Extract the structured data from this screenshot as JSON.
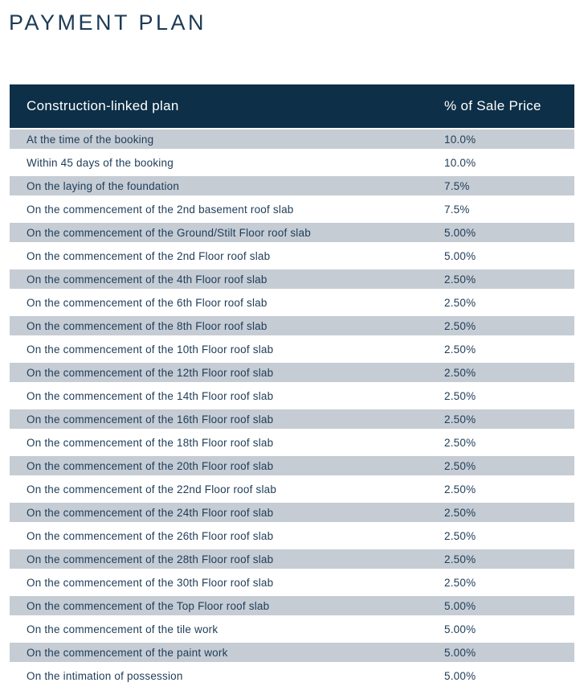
{
  "page": {
    "title": "PAYMENT PLAN"
  },
  "colors": {
    "title_text": "#1c3a55",
    "header_bg": "#0d2f48",
    "header_text": "#ffffff",
    "stripe_bg": "#c5ccd4",
    "row_text": "#1e3c58",
    "page_bg": "#ffffff"
  },
  "table": {
    "header": {
      "plan": "Construction-linked plan",
      "percent": "% of Sale Price"
    },
    "rows": [
      {
        "milestone": "At the time of the booking",
        "percent": "10.0%"
      },
      {
        "milestone": "Within 45 days of the booking",
        "percent": "10.0%"
      },
      {
        "milestone": "On the laying of the foundation",
        "percent": "7.5%"
      },
      {
        "milestone": "On the commencement of the 2nd basement roof slab",
        "percent": "7.5%"
      },
      {
        "milestone": "On the commencement of the Ground/Stilt Floor roof slab",
        "percent": "5.00%"
      },
      {
        "milestone": "On the commencement of the 2nd Floor roof slab",
        "percent": "5.00%"
      },
      {
        "milestone": "On the commencement of the 4th Floor roof slab",
        "percent": "2.50%"
      },
      {
        "milestone": "On the commencement of the 6th Floor roof slab",
        "percent": "2.50%"
      },
      {
        "milestone": "On the commencement of the 8th Floor roof slab",
        "percent": "2.50%"
      },
      {
        "milestone": "On the commencement of the 10th Floor roof slab",
        "percent": "2.50%"
      },
      {
        "milestone": "On the commencement of the 12th Floor roof slab",
        "percent": "2.50%"
      },
      {
        "milestone": "On the commencement of the 14th Floor roof slab",
        "percent": "2.50%"
      },
      {
        "milestone": "On the commencement of the 16th Floor roof slab",
        "percent": "2.50%"
      },
      {
        "milestone": "On the commencement of the 18th Floor roof slab",
        "percent": "2.50%"
      },
      {
        "milestone": "On the commencement of the 20th Floor roof slab",
        "percent": "2.50%"
      },
      {
        "milestone": "On the commencement of the 22nd Floor roof slab",
        "percent": "2.50%"
      },
      {
        "milestone": "On the commencement of the 24th Floor roof slab",
        "percent": "2.50%"
      },
      {
        "milestone": "On the commencement of the 26th Floor roof slab",
        "percent": "2.50%"
      },
      {
        "milestone": "On the commencement of the 28th Floor roof slab",
        "percent": "2.50%"
      },
      {
        "milestone": "On the commencement of the 30th Floor roof slab",
        "percent": "2.50%"
      },
      {
        "milestone": "On the commencement of the Top Floor roof slab",
        "percent": "5.00%"
      },
      {
        "milestone": "On the commencement of the tile work",
        "percent": "5.00%"
      },
      {
        "milestone": "On the commencement of the paint work",
        "percent": "5.00%"
      },
      {
        "milestone": "On the intimation of possession",
        "percent": "5.00%"
      }
    ]
  }
}
